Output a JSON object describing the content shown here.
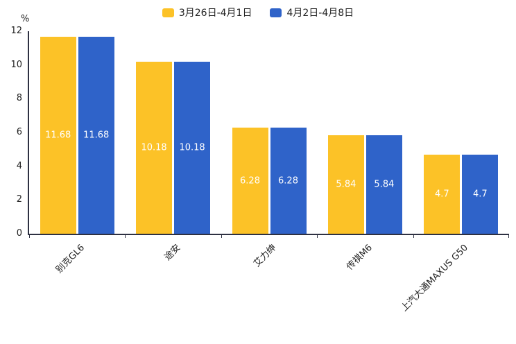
{
  "chart_data": {
    "type": "bar",
    "title": "",
    "unit_label": "%",
    "categories": [
      "别克GL6",
      "途安",
      "艾力绅",
      "传祺M6",
      "上汽大通MAXUS G50"
    ],
    "series": [
      {
        "name": "3月26日-4月1日",
        "color": "#FCC227",
        "values": [
          11.68,
          10.18,
          6.28,
          5.84,
          4.7
        ]
      },
      {
        "name": "4月2日-4月8日",
        "color": "#2F63C9",
        "values": [
          11.68,
          10.18,
          6.28,
          5.84,
          4.7
        ]
      }
    ],
    "ylim": [
      0,
      12
    ],
    "yticks": [
      0,
      2,
      4,
      6,
      8,
      10,
      12
    ],
    "grid": false,
    "legend_position": "top",
    "bar_label_color": "#ffffff",
    "axis_color": "#2e3142"
  }
}
